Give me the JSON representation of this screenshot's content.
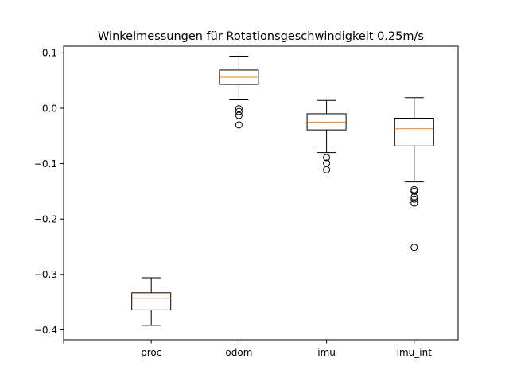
{
  "chart_data": {
    "type": "box",
    "title": "Winkelmessungen für Rotationsgeschwindigkeit 0.25m/s",
    "xlabel": "",
    "ylabel": "",
    "ylim": [
      -0.418,
      0.112
    ],
    "grid": false,
    "categories": [
      "",
      "proc",
      "odom",
      "imu",
      "imu_int"
    ],
    "yticks": [
      0.1,
      0.0,
      -0.1,
      -0.2,
      -0.3,
      -0.4
    ],
    "ytick_labels": [
      "0.1",
      "0.0",
      "−0.1",
      "−0.2",
      "−0.3",
      "−0.4"
    ],
    "boxes": [
      {
        "category": "proc",
        "whisker_low": -0.392,
        "q1": -0.364,
        "median": -0.343,
        "q3": -0.333,
        "whisker_high": -0.306,
        "outliers": []
      },
      {
        "category": "odom",
        "whisker_low": 0.015,
        "q1": 0.043,
        "median": 0.056,
        "q3": 0.069,
        "whisker_high": 0.094,
        "outliers": [
          -0.001,
          -0.006,
          -0.013,
          -0.03
        ]
      },
      {
        "category": "imu",
        "whisker_low": -0.08,
        "q1": -0.039,
        "median": -0.025,
        "q3": -0.01,
        "whisker_high": 0.014,
        "outliers": [
          -0.089,
          -0.099,
          -0.111
        ]
      },
      {
        "category": "imu_int",
        "whisker_low": -0.133,
        "q1": -0.068,
        "median": -0.037,
        "q3": -0.018,
        "whisker_high": 0.019,
        "outliers": [
          -0.147,
          -0.15,
          -0.16,
          -0.164,
          -0.171,
          -0.251
        ]
      }
    ],
    "colors": {
      "box": "#000000",
      "median": "#ff7f0e",
      "outlier": "#000000"
    }
  }
}
